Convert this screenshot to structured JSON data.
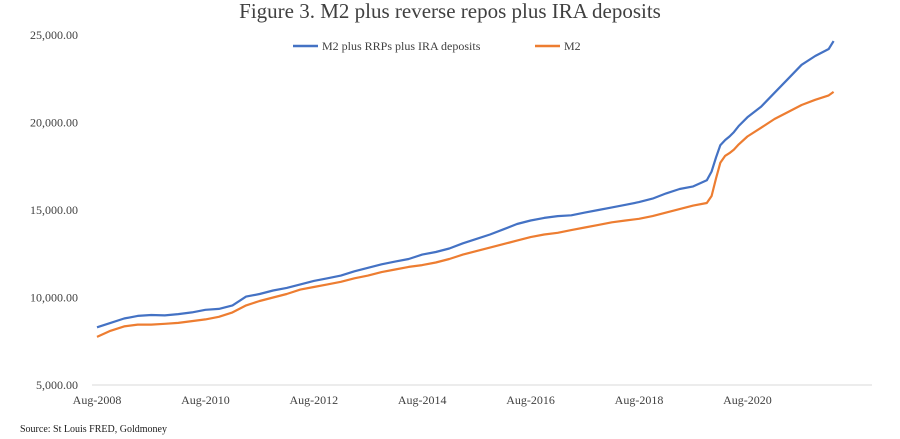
{
  "chart_data": {
    "type": "line",
    "title": "Figure 3. M2 plus reverse repos plus IRA deposits",
    "source": "Source: St Louis FRED, Goldmoney",
    "ylim": [
      5000,
      25000
    ],
    "yticks": [
      "5,000.00",
      "10,000.00",
      "15,000.00",
      "20,000.00",
      "25,000.00"
    ],
    "yticks_values": [
      5000,
      10000,
      15000,
      20000,
      25000
    ],
    "xticks": [
      "Aug-2008",
      "Aug-2010",
      "Aug-2012",
      "Aug-2014",
      "Aug-2016",
      "Aug-2018",
      "Aug-2020"
    ],
    "xlim": [
      2008.58,
      2022.25
    ],
    "grid": false,
    "legend": "top-center",
    "x": [
      2008.58,
      2008.83,
      2009.08,
      2009.33,
      2009.58,
      2009.83,
      2010.08,
      2010.33,
      2010.58,
      2010.83,
      2011.08,
      2011.33,
      2011.58,
      2011.83,
      2012.08,
      2012.33,
      2012.58,
      2012.83,
      2013.08,
      2013.33,
      2013.58,
      2013.83,
      2014.08,
      2014.33,
      2014.58,
      2014.83,
      2015.08,
      2015.33,
      2015.58,
      2015.83,
      2016.08,
      2016.33,
      2016.58,
      2016.83,
      2017.08,
      2017.33,
      2017.58,
      2017.83,
      2018.08,
      2018.33,
      2018.58,
      2018.83,
      2019.08,
      2019.33,
      2019.58,
      2019.83,
      2019.92,
      2020.0,
      2020.08,
      2020.17,
      2020.25,
      2020.33,
      2020.42,
      2020.58,
      2020.83,
      2021.08,
      2021.33,
      2021.58,
      2021.83,
      2022.08,
      2022.17
    ],
    "series": [
      {
        "name": "M2 plus RRPs plus IRA deposits",
        "color": "#4472c4",
        "values": [
          8300,
          8550,
          8800,
          8950,
          9000,
          8980,
          9050,
          9150,
          9300,
          9350,
          9550,
          10050,
          10200,
          10400,
          10550,
          10750,
          10950,
          11100,
          11250,
          11500,
          11700,
          11900,
          12050,
          12200,
          12450,
          12600,
          12800,
          13100,
          13350,
          13600,
          13900,
          14200,
          14400,
          14550,
          14650,
          14700,
          14850,
          15000,
          15150,
          15300,
          15450,
          15650,
          15950,
          16200,
          16350,
          16700,
          17200,
          18000,
          18700,
          19000,
          19200,
          19450,
          19800,
          20300,
          20900,
          21700,
          22500,
          23300,
          23800,
          24200,
          24650
        ]
      },
      {
        "name": "M2",
        "color": "#ed7d31",
        "values": [
          7750,
          8100,
          8350,
          8450,
          8450,
          8500,
          8550,
          8650,
          8750,
          8900,
          9150,
          9550,
          9800,
          10000,
          10200,
          10450,
          10600,
          10750,
          10900,
          11100,
          11250,
          11450,
          11600,
          11750,
          11850,
          12000,
          12200,
          12450,
          12650,
          12850,
          13050,
          13250,
          13450,
          13600,
          13700,
          13850,
          14000,
          14150,
          14300,
          14400,
          14500,
          14650,
          14850,
          15050,
          15250,
          15400,
          15800,
          16800,
          17700,
          18100,
          18250,
          18450,
          18750,
          19200,
          19700,
          20200,
          20600,
          21000,
          21300,
          21550,
          21750
        ]
      }
    ]
  }
}
